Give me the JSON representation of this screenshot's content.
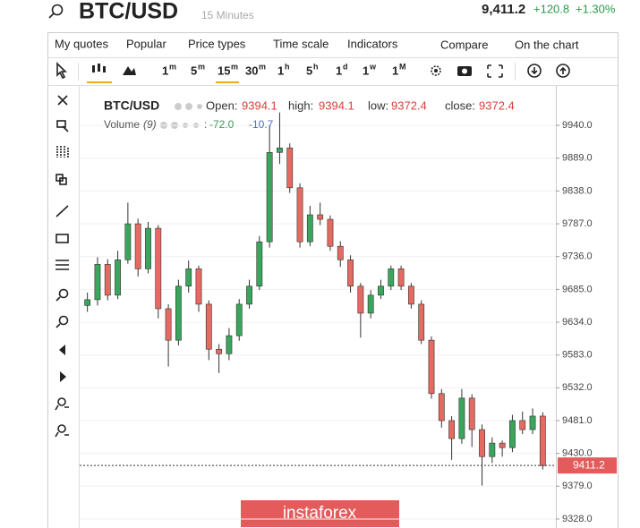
{
  "header": {
    "symbol": "BTC/USD",
    "interval": "15 Minutes",
    "price": "9,411.2",
    "change": "+120.8",
    "change_pct": "+1.30%"
  },
  "menu": [
    "My quotes",
    "Popular",
    "Price types",
    "Time scale",
    "Indicators",
    "Compare",
    "On the chart"
  ],
  "timeframes": [
    {
      "n": "1",
      "u": "m"
    },
    {
      "n": "5",
      "u": "m"
    },
    {
      "n": "15",
      "u": "m"
    },
    {
      "n": "30",
      "u": "m"
    },
    {
      "n": "1",
      "u": "h"
    },
    {
      "n": "5",
      "u": "h"
    },
    {
      "n": "1",
      "u": "d"
    },
    {
      "n": "1",
      "u": "w"
    },
    {
      "n": "1",
      "u": "M"
    }
  ],
  "chart_data": {
    "type": "candlestick",
    "legend": {
      "symbol": "BTC/USD",
      "open_label": "Open:",
      "open": 9394.1,
      "high_label": "high:",
      "high": 9394.1,
      "low_label": "low:",
      "low": 9372.4,
      "close_label": "close:",
      "close": 9372.4
    },
    "volume": {
      "name": "Volume",
      "period": "(9)",
      "values": [
        -72,
        -10.7
      ],
      "value_labels": [
        "-72.0",
        "-10.7"
      ]
    },
    "up_color": "#3aa55c",
    "down_color": "#e46a62",
    "open": [
      9660,
      9669,
      9724,
      9676,
      9731,
      9787,
      9717,
      9780,
      9655,
      9606,
      9690,
      9717,
      9662,
      9592,
      9585,
      9613,
      9662,
      9690,
      9759,
      9898,
      9905,
      9843,
      9759,
      9801,
      9794,
      9752,
      9731,
      9690,
      9648,
      9676,
      9690,
      9717,
      9690,
      9662,
      9606,
      9523,
      9481,
      9453,
      9516,
      9467,
      9425,
      9446,
      9439,
      9481,
      9467,
      9488
    ],
    "high": [
      9680,
      9735,
      9732,
      9745,
      9820,
      9795,
      9790,
      9785,
      9662,
      9700,
      9730,
      9722,
      9668,
      9600,
      9625,
      9670,
      9700,
      9768,
      9940,
      9960,
      9912,
      9850,
      9815,
      9820,
      9800,
      9760,
      9738,
      9695,
      9684,
      9700,
      9722,
      9722,
      9695,
      9668,
      9612,
      9530,
      9488,
      9530,
      9522,
      9475,
      9455,
      9450,
      9490,
      9495,
      9500,
      9494
    ],
    "low": [
      9650,
      9660,
      9668,
      9670,
      9725,
      9705,
      9710,
      9640,
      9565,
      9598,
      9680,
      9650,
      9575,
      9555,
      9575,
      9605,
      9655,
      9684,
      9750,
      9880,
      9835,
      9750,
      9752,
      9785,
      9745,
      9720,
      9680,
      9610,
      9640,
      9670,
      9684,
      9684,
      9655,
      9600,
      9515,
      9470,
      9420,
      9445,
      9440,
      9380,
      9415,
      9425,
      9432,
      9460,
      9460,
      9405
    ],
    "close": [
      9669,
      9724,
      9676,
      9731,
      9787,
      9717,
      9780,
      9655,
      9606,
      9690,
      9717,
      9662,
      9592,
      9585,
      9613,
      9662,
      9690,
      9759,
      9898,
      9905,
      9843,
      9759,
      9801,
      9794,
      9752,
      9731,
      9690,
      9648,
      9676,
      9690,
      9717,
      9690,
      9662,
      9606,
      9523,
      9481,
      9453,
      9516,
      9467,
      9425,
      9446,
      9439,
      9481,
      9467,
      9488,
      9411
    ],
    "last_price": 9411.2,
    "ylim": [
      9314,
      10000
    ],
    "yticks": [
      {
        "value": 9940,
        "label": "9940.0"
      },
      {
        "value": 9889,
        "label": "9889.0"
      },
      {
        "value": 9838,
        "label": "9838.0"
      },
      {
        "value": 9787,
        "label": "9787.0"
      },
      {
        "value": 9736,
        "label": "9736.0"
      },
      {
        "value": 9685,
        "label": "9685.0"
      },
      {
        "value": 9634,
        "label": "9634.0"
      },
      {
        "value": 9583,
        "label": "9583.0"
      },
      {
        "value": 9532,
        "label": "9532.0"
      },
      {
        "value": 9481,
        "label": "9481.0"
      },
      {
        "value": 9430,
        "label": "9430.0"
      },
      {
        "value": 9379,
        "label": "9379.0"
      },
      {
        "value": 9328,
        "label": "9328.0"
      }
    ],
    "grid": true
  },
  "watermark": "instaforex"
}
